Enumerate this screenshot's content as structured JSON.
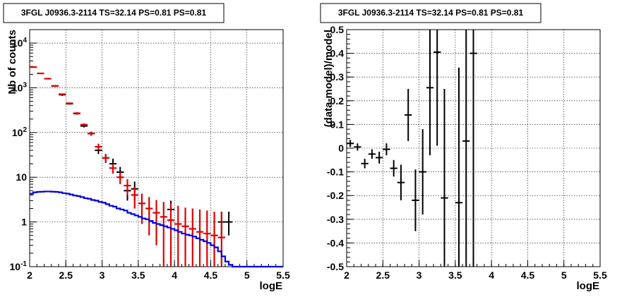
{
  "chart_data": [
    {
      "type": "histogram",
      "title": "3FGL J0936.3-2114 TS=32.14 PS=0.81 PS=0.81",
      "xlabel": "logE",
      "ylabel": "Nb of counts",
      "xlim": [
        2,
        5.5
      ],
      "ylim": [
        0.1,
        20000
      ],
      "yscale": "log",
      "grid": true,
      "x_ticks": [
        "2",
        "2.5",
        "3",
        "3.5",
        "4",
        "4.5",
        "5",
        "5.5"
      ],
      "y_ticks": [
        {
          "value": 0.1,
          "base": "10",
          "exp": "-1"
        },
        {
          "value": 1,
          "label": "1"
        },
        {
          "value": 10,
          "label": "10"
        },
        {
          "value": 100,
          "base": "10",
          "exp": "2"
        },
        {
          "value": 1000,
          "base": "10",
          "exp": "3"
        },
        {
          "value": 10000,
          "base": "10",
          "exp": "4"
        }
      ],
      "series": [
        {
          "color": "#000000",
          "style": "errorbar",
          "x": [
            2.35,
            2.45,
            2.55,
            2.65,
            2.75,
            2.85,
            2.95,
            3.05,
            3.15,
            3.25,
            3.35,
            3.45,
            3.95,
            4.65,
            4.75
          ],
          "y": [
            1100,
            700,
            440,
            265,
            140,
            95,
            40,
            27,
            20,
            13,
            5,
            5.5,
            1.9,
            1,
            1
          ],
          "ylow": [
            1050,
            660,
            420,
            250,
            130,
            85,
            33,
            21,
            15,
            9,
            3,
            3,
            0.5,
            0.5,
            0.5
          ],
          "yhigh": [
            1150,
            740,
            460,
            280,
            150,
            105,
            47,
            33,
            26,
            17,
            7.5,
            8,
            3,
            1.7,
            1.7
          ]
        },
        {
          "color": "#dd0000",
          "style": "errorbar",
          "x": [
            2.05,
            2.15,
            2.25,
            2.35,
            2.45,
            2.55,
            2.65,
            2.75,
            2.85,
            2.95,
            3.05,
            3.15,
            3.25,
            3.35,
            3.45,
            3.55,
            3.65,
            3.75,
            3.85,
            3.95,
            4.05,
            4.15,
            4.25,
            4.35,
            4.45,
            4.55,
            4.65
          ],
          "y": [
            2900,
            2100,
            1600,
            1100,
            720,
            450,
            270,
            150,
            95,
            48,
            27,
            16,
            10,
            6.5,
            4,
            2.6,
            2,
            1.6,
            1.3,
            1.1,
            0.9,
            0.8,
            0.7,
            0.6,
            0.55,
            0.5,
            0.45
          ],
          "ylow": [
            2850,
            2050,
            1550,
            1050,
            690,
            430,
            255,
            140,
            85,
            40,
            22,
            12,
            7,
            4,
            2,
            0.9,
            0.5,
            0.3,
            0.1,
            0.1,
            0.1,
            0.1,
            0.1,
            0.1,
            0.1,
            0.1,
            0.1
          ],
          "yhigh": [
            2950,
            2150,
            1650,
            1150,
            750,
            470,
            285,
            160,
            105,
            56,
            32,
            20,
            13,
            9,
            6,
            4.3,
            3.6,
            3.1,
            2.8,
            2.6,
            2.3,
            2.1,
            2,
            1.9,
            1.8,
            1.7,
            1.7
          ]
        },
        {
          "color": "#0000dd",
          "style": "step",
          "edges": [
            2.0,
            2.05,
            2.1,
            2.15,
            2.2,
            2.25,
            2.3,
            2.35,
            2.4,
            2.45,
            2.5,
            2.55,
            2.6,
            2.65,
            2.7,
            2.75,
            2.8,
            2.85,
            2.9,
            2.95,
            3.0,
            3.05,
            3.1,
            3.15,
            3.2,
            3.25,
            3.3,
            3.35,
            3.4,
            3.45,
            3.5,
            3.55,
            3.6,
            3.65,
            3.7,
            3.75,
            3.8,
            3.85,
            3.9,
            3.95,
            4.0,
            4.05,
            4.1,
            4.15,
            4.2,
            4.25,
            4.3,
            4.35,
            4.4,
            4.45,
            4.5,
            4.55,
            4.6,
            4.65,
            4.7,
            4.75,
            4.8,
            5.5
          ],
          "values": [
            4.3,
            4.6,
            4.7,
            4.75,
            4.8,
            4.8,
            4.75,
            4.7,
            4.6,
            4.4,
            4.3,
            4.1,
            3.9,
            3.8,
            3.6,
            3.4,
            3.3,
            3.1,
            3.0,
            2.8,
            2.7,
            2.5,
            2.3,
            2.2,
            2.0,
            1.9,
            1.8,
            1.6,
            1.5,
            1.4,
            1.3,
            1.2,
            1.15,
            1.05,
            0.95,
            0.9,
            0.85,
            0.8,
            0.75,
            0.7,
            0.65,
            0.6,
            0.55,
            0.52,
            0.5,
            0.47,
            0.43,
            0.4,
            0.37,
            0.34,
            0.3,
            0.27,
            0.22,
            0.17,
            0.13,
            0.11,
            0.1
          ]
        }
      ]
    },
    {
      "type": "errorbar",
      "title": "3FGL J0936.3-2114 TS=32.14 PS=0.81 PS=0.81",
      "xlabel": "logE",
      "ylabel": "(data-model)/model",
      "xlim": [
        2,
        5.5
      ],
      "ylim": [
        -0.5,
        0.5
      ],
      "grid": true,
      "x_ticks": [
        "2",
        "2.5",
        "3",
        "3.5",
        "4",
        "4.5",
        "5",
        "5.5"
      ],
      "y_ticks": [
        "-0.5",
        "-0.4",
        "-0.3",
        "-0.2",
        "-0.1",
        "0",
        "0.1",
        "0.2",
        "0.3",
        "0.4",
        "0.5"
      ],
      "series": [
        {
          "color": "#000000",
          "x": [
            2.05,
            2.15,
            2.25,
            2.35,
            2.45,
            2.55,
            2.65,
            2.75,
            2.85,
            2.95,
            3.05,
            3.15,
            3.25,
            3.35,
            3.55,
            3.65,
            3.75
          ],
          "y": [
            0.02,
            0.005,
            -0.065,
            -0.025,
            -0.04,
            -0.005,
            -0.085,
            -0.145,
            0.14,
            -0.22,
            -0.1,
            0.255,
            0.405,
            -0.21,
            -0.23,
            0.03,
            0.4
          ],
          "ylow": [
            0.005,
            -0.01,
            -0.085,
            -0.045,
            -0.065,
            -0.03,
            -0.12,
            -0.22,
            0.03,
            -0.35,
            -0.28,
            -0.03,
            0.01,
            -0.5,
            -0.5,
            -0.5,
            -0.5
          ],
          "yhigh": [
            0.035,
            0.02,
            -0.045,
            -0.005,
            -0.015,
            0.02,
            -0.05,
            -0.07,
            0.25,
            -0.09,
            0.08,
            0.5,
            0.5,
            0.25,
            0.34,
            0.5,
            0.5
          ]
        }
      ]
    }
  ]
}
